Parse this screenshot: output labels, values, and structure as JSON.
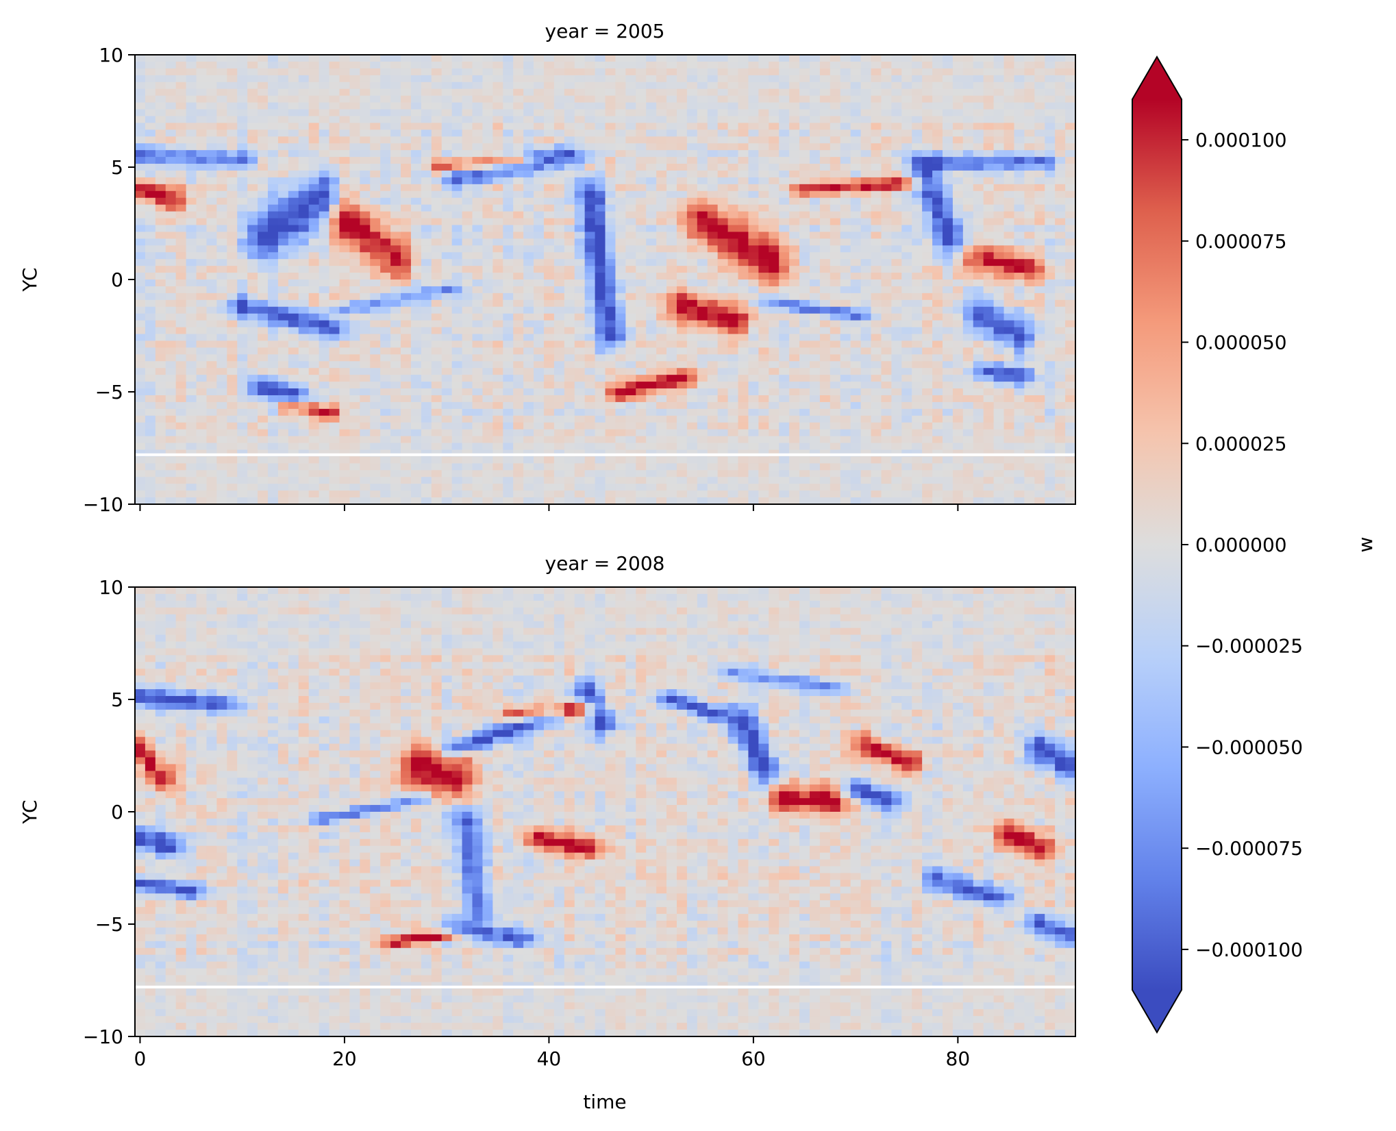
{
  "chart_data": {
    "type": "heatmap",
    "colormap": "coolwarm",
    "colorbar": {
      "label": "w",
      "vmin": -0.00011,
      "vmax": 0.00011,
      "extend": "both",
      "ticks": [
        -0.0001,
        -7.5e-05,
        -5e-05,
        -2.5e-05,
        0,
        2.5e-05,
        5e-05,
        7.5e-05,
        0.0001
      ],
      "tick_labels": [
        "−0.000100",
        "−0.000075",
        "−0.000050",
        "−0.000025",
        "0.000000",
        "0.000025",
        "0.000050",
        "0.000075",
        "0.000100"
      ]
    },
    "xlabel": "time",
    "xlim": [
      -0.5,
      91.5
    ],
    "x_ticks": [
      0,
      20,
      40,
      60,
      80
    ],
    "x_tick_labels": [
      "0",
      "20",
      "40",
      "60",
      "80"
    ],
    "shared_x": true,
    "ylabel": "YC",
    "ylim": [
      -10,
      10
    ],
    "y_ticks": [
      -10,
      -5,
      0,
      5,
      10
    ],
    "y_tick_labels": [
      "−10",
      "−5",
      "0",
      "5",
      "10"
    ],
    "gap_band_yc": -7.8,
    "panels": [
      {
        "title": "year = 2005",
        "features": [
          {
            "t0": 12,
            "y0": 2.0,
            "t1": 18,
            "y1": 3.6,
            "v": -1.0,
            "w": 1.2
          },
          {
            "t0": 20,
            "y0": 2.6,
            "t1": 25,
            "y1": 1.0,
            "v": 1.0,
            "w": 1.0
          },
          {
            "t0": 31,
            "y0": 4.6,
            "t1": 42,
            "y1": 5.5,
            "v": -0.9,
            "w": 0.5
          },
          {
            "t0": 30,
            "y0": 5.0,
            "t1": 37,
            "y1": 5.3,
            "v": 1.0,
            "w": 0.3
          },
          {
            "t0": 44,
            "y0": 3.8,
            "t1": 46,
            "y1": -2.5,
            "v": -1.0,
            "w": 0.7
          },
          {
            "t0": 55,
            "y0": 2.5,
            "t1": 62,
            "y1": 0.8,
            "v": 1.0,
            "w": 1.0
          },
          {
            "t0": 53,
            "y0": -1.2,
            "t1": 58,
            "y1": -1.8,
            "v": 1.0,
            "w": 0.7
          },
          {
            "t0": 77,
            "y0": 4.5,
            "t1": 79,
            "y1": 2.0,
            "v": -1.0,
            "w": 0.9
          },
          {
            "t0": 77,
            "y0": 5.2,
            "t1": 88,
            "y1": 5.2,
            "v": -0.9,
            "w": 0.35
          },
          {
            "t0": 82,
            "y0": 1.0,
            "t1": 87,
            "y1": 0.5,
            "v": 0.9,
            "w": 0.6
          },
          {
            "t0": 82,
            "y0": -1.5,
            "t1": 86,
            "y1": -2.5,
            "v": -0.9,
            "w": 0.8
          },
          {
            "t0": 10,
            "y0": -1.2,
            "t1": 19,
            "y1": -2.2,
            "v": -0.9,
            "w": 0.5
          },
          {
            "t0": 12,
            "y0": -4.8,
            "t1": 15,
            "y1": -5.2,
            "v": -1.0,
            "w": 0.5
          },
          {
            "t0": 15,
            "y0": -5.6,
            "t1": 18,
            "y1": -5.9,
            "v": 1.0,
            "w": 0.3
          },
          {
            "t0": 47,
            "y0": -5.0,
            "t1": 53,
            "y1": -4.4,
            "v": 1.0,
            "w": 0.4
          },
          {
            "t0": 83,
            "y0": -4.1,
            "t1": 86,
            "y1": -4.3,
            "v": -1.0,
            "w": 0.4
          },
          {
            "t0": 0,
            "y0": 4.0,
            "t1": 3,
            "y1": 3.6,
            "v": 1.0,
            "w": 0.5
          },
          {
            "t0": 0,
            "y0": 5.5,
            "t1": 10,
            "y1": 5.3,
            "v": -0.7,
            "w": 0.4
          },
          {
            "t0": 20,
            "y0": -1.3,
            "t1": 30,
            "y1": -0.5,
            "v": -0.6,
            "w": 0.3
          },
          {
            "t0": 65,
            "y0": 4.0,
            "t1": 75,
            "y1": 4.3,
            "v": 0.9,
            "w": 0.3
          },
          {
            "t0": 62,
            "y0": -1.0,
            "t1": 70,
            "y1": -1.6,
            "v": -0.8,
            "w": 0.25
          }
        ]
      },
      {
        "title": "year = 2008",
        "features": [
          {
            "t0": 0,
            "y0": 5.1,
            "t1": 8,
            "y1": 4.8,
            "v": -1.0,
            "w": 0.4
          },
          {
            "t0": 0,
            "y0": 2.8,
            "t1": 2,
            "y1": 1.5,
            "v": 1.0,
            "w": 0.6
          },
          {
            "t0": 27,
            "y0": 2.0,
            "t1": 31,
            "y1": 1.6,
            "v": 1.0,
            "w": 1.0
          },
          {
            "t0": 31,
            "y0": 2.8,
            "t1": 40,
            "y1": 4.3,
            "v": -1.0,
            "w": 0.4
          },
          {
            "t0": 37,
            "y0": 4.3,
            "t1": 43,
            "y1": 4.6,
            "v": 1.0,
            "w": 0.35
          },
          {
            "t0": 39,
            "y0": -1.2,
            "t1": 44,
            "y1": -1.6,
            "v": 1.0,
            "w": 0.5
          },
          {
            "t0": 44,
            "y0": 5.3,
            "t1": 45,
            "y1": 4.0,
            "v": -1.0,
            "w": 0.6
          },
          {
            "t0": 59,
            "y0": 4.0,
            "t1": 61,
            "y1": 2.0,
            "v": -1.0,
            "w": 0.8
          },
          {
            "t0": 63,
            "y0": 0.6,
            "t1": 68,
            "y1": 0.5,
            "v": 1.0,
            "w": 0.6
          },
          {
            "t0": 71,
            "y0": 3.0,
            "t1": 75,
            "y1": 2.2,
            "v": 1.0,
            "w": 0.5
          },
          {
            "t0": 70,
            "y0": 1.0,
            "t1": 73,
            "y1": 0.5,
            "v": -1.0,
            "w": 0.5
          },
          {
            "t0": 85,
            "y0": -1.0,
            "t1": 88,
            "y1": -1.6,
            "v": 1.0,
            "w": 0.6
          },
          {
            "t0": 88,
            "y0": 2.8,
            "t1": 91,
            "y1": 2.0,
            "v": -1.0,
            "w": 0.7
          },
          {
            "t0": 88,
            "y0": -5.0,
            "t1": 91,
            "y1": -5.5,
            "v": -1.0,
            "w": 0.5
          },
          {
            "t0": 32,
            "y0": -0.2,
            "t1": 33,
            "y1": -4.5,
            "v": -0.9,
            "w": 0.5
          },
          {
            "t0": 31,
            "y0": -5.2,
            "t1": 37,
            "y1": -5.6,
            "v": -0.9,
            "w": 0.4
          },
          {
            "t0": 18,
            "y0": -0.3,
            "t1": 27,
            "y1": 0.5,
            "v": -0.8,
            "w": 0.25
          },
          {
            "t0": 0,
            "y0": -1.2,
            "t1": 3,
            "y1": -1.5,
            "v": -1.0,
            "w": 0.5
          },
          {
            "t0": 0,
            "y0": -3.2,
            "t1": 5,
            "y1": -3.5,
            "v": -1.0,
            "w": 0.35
          },
          {
            "t0": 25,
            "y0": -5.8,
            "t1": 30,
            "y1": -5.5,
            "v": 1.0,
            "w": 0.25
          },
          {
            "t0": 78,
            "y0": -3.0,
            "t1": 84,
            "y1": -3.8,
            "v": -0.9,
            "w": 0.5
          },
          {
            "t0": 52,
            "y0": 5.0,
            "t1": 56,
            "y1": 4.4,
            "v": -1.0,
            "w": 0.35
          },
          {
            "t0": 58,
            "y0": 6.2,
            "t1": 68,
            "y1": 5.5,
            "v": -0.7,
            "w": 0.3
          }
        ]
      }
    ]
  }
}
